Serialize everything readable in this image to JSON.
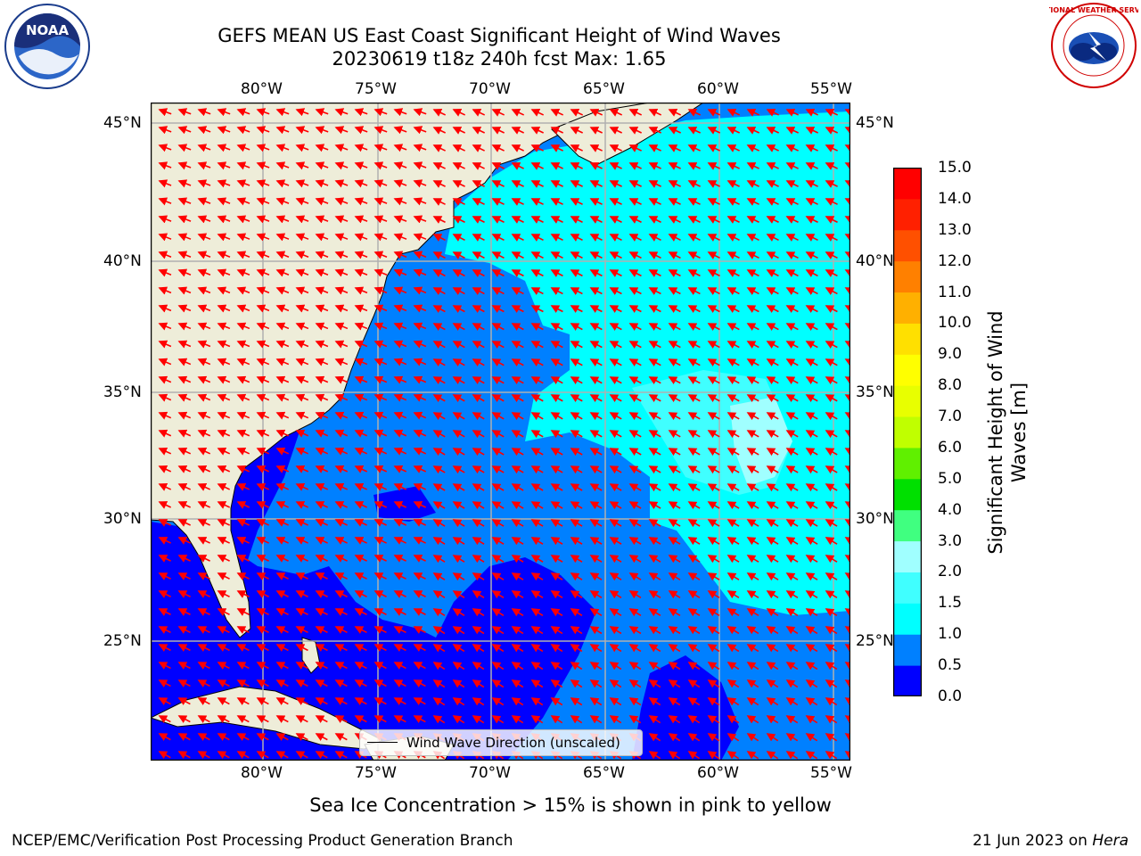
{
  "title": {
    "line1": "GEFS MEAN US East Coast Significant Height of Wind Waves",
    "line2": "20230619 t18z 240h fcst   Max: 1.65"
  },
  "map": {
    "lon_labels": [
      "80°W",
      "75°W",
      "70°W",
      "65°W",
      "60°W",
      "55°W"
    ],
    "lat_labels": [
      "45°N",
      "40°N",
      "35°N",
      "30°N",
      "25°N"
    ],
    "legend_label": "Wind Wave Direction (unscaled)",
    "land_color": "#eeedd9",
    "arrow_color": "#ff0000",
    "gridline_color": "#b0b0b0"
  },
  "colorbar": {
    "label_line1": "Significant Height of Wind",
    "label_line2": "Waves [m]",
    "ticks": [
      "15.0",
      "14.0",
      "13.0",
      "12.0",
      "11.0",
      "10.0",
      "9.0",
      "8.0",
      "7.0",
      "6.0",
      "5.0",
      "4.0",
      "3.0",
      "2.0",
      "1.5",
      "1.0",
      "0.5",
      "0.0"
    ],
    "colors_bottom_to_top": [
      "#0000ff",
      "#0080ff",
      "#00ffff",
      "#40ffff",
      "#a0ffff",
      "#40ff80",
      "#00e000",
      "#60f000",
      "#c0ff00",
      "#e8ff00",
      "#ffff00",
      "#ffe000",
      "#ffb000",
      "#ff8000",
      "#ff5000",
      "#ff2000",
      "#ff0000"
    ]
  },
  "subtitle": "Sea Ice Concentration > 15% is shown in pink to yellow",
  "footer": {
    "left": "NCEP/EMC/Verification Post Processing Product Generation Branch",
    "date": "21 Jun 2023 on ",
    "machine": "Hera"
  },
  "logos": {
    "left_logo_text": "NOAA",
    "right_logo_text": "NATIONAL WEATHER SERVICE"
  }
}
